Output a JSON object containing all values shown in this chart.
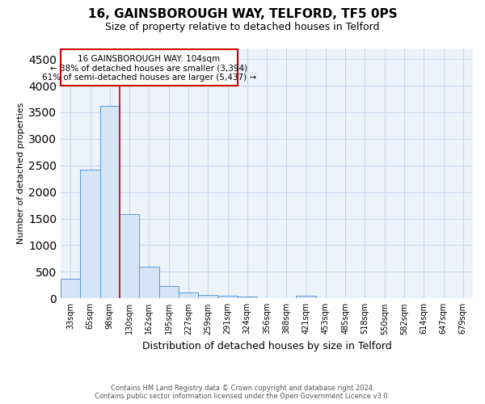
{
  "title1": "16, GAINSBOROUGH WAY, TELFORD, TF5 0PS",
  "title2": "Size of property relative to detached houses in Telford",
  "xlabel": "Distribution of detached houses by size in Telford",
  "ylabel": "Number of detached properties",
  "categories": [
    "33sqm",
    "65sqm",
    "98sqm",
    "130sqm",
    "162sqm",
    "195sqm",
    "227sqm",
    "259sqm",
    "291sqm",
    "324sqm",
    "356sqm",
    "388sqm",
    "421sqm",
    "453sqm",
    "485sqm",
    "518sqm",
    "550sqm",
    "582sqm",
    "614sqm",
    "647sqm",
    "679sqm"
  ],
  "values": [
    370,
    2420,
    3620,
    1580,
    600,
    230,
    110,
    60,
    50,
    40,
    0,
    0,
    50,
    0,
    0,
    0,
    0,
    0,
    0,
    0,
    0
  ],
  "bar_color": "#d6e4f7",
  "bar_edge_color": "#5b9bd5",
  "vline_color": "#cc0000",
  "annotation_line1": "16 GAINSBOROUGH WAY: 104sqm",
  "annotation_line2": "← 38% of detached houses are smaller (3,394)",
  "annotation_line3": "61% of semi-detached houses are larger (5,437) →",
  "annotation_box_color": "#cc0000",
  "ylim": [
    0,
    4700
  ],
  "yticks": [
    0,
    500,
    1000,
    1500,
    2000,
    2500,
    3000,
    3500,
    4000,
    4500
  ],
  "footer1": "Contains HM Land Registry data © Crown copyright and database right 2024.",
  "footer2": "Contains public sector information licensed under the Open Government Licence v3.0.",
  "bg_color": "#ffffff",
  "plot_bg_color": "#edf3fb",
  "grid_color": "#c8d8ea",
  "title1_fontsize": 11,
  "title2_fontsize": 9,
  "xlabel_fontsize": 9,
  "ylabel_fontsize": 8,
  "tick_fontsize": 7
}
